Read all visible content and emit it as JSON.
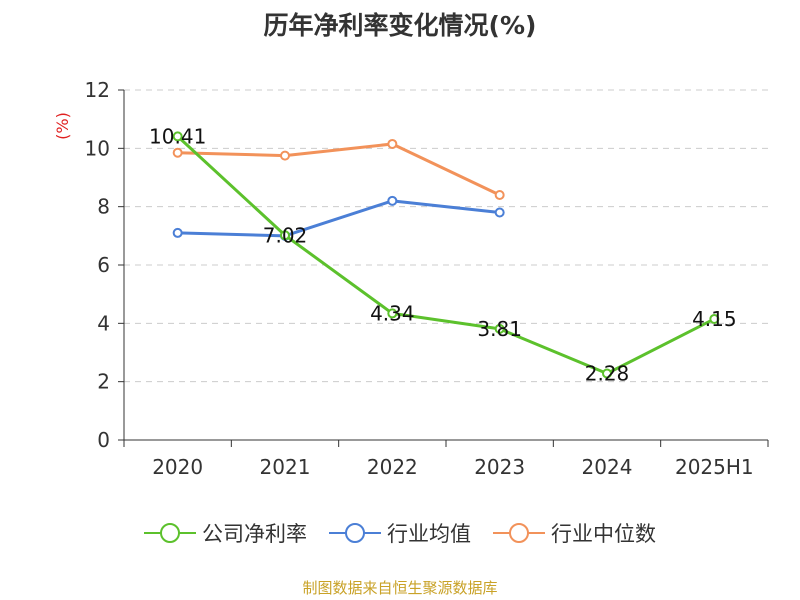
{
  "chart_data": {
    "type": "line",
    "title": "历年净利率变化情况(%)",
    "ylabel": "(%)",
    "categories": [
      "2020",
      "2021",
      "2022",
      "2023",
      "2024",
      "2025H1"
    ],
    "ylim": [
      0,
      12
    ],
    "yticks": [
      0,
      2,
      4,
      6,
      8,
      10,
      12
    ],
    "grid": true,
    "legend_position": "bottom",
    "series": [
      {
        "name": "公司净利率",
        "color": "#5cc12c",
        "show_labels": true,
        "values": [
          10.41,
          7.02,
          4.34,
          3.81,
          2.28,
          4.15
        ]
      },
      {
        "name": "行业均值",
        "color": "#4b7fd6",
        "show_labels": false,
        "values": [
          7.1,
          7.0,
          8.2,
          7.8,
          null,
          null
        ]
      },
      {
        "name": "行业中位数",
        "color": "#f2925a",
        "show_labels": false,
        "values": [
          9.85,
          9.75,
          10.15,
          8.4,
          null,
          null
        ]
      }
    ]
  },
  "source": "制图数据来自恒生聚源数据库"
}
